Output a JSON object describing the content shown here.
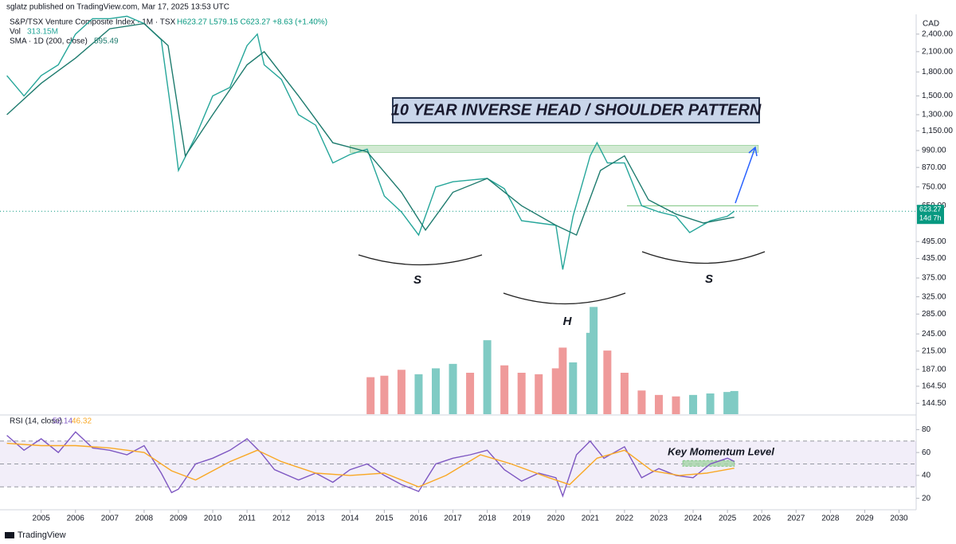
{
  "header": {
    "publisher": "sglatz published on TradingView.com, Mar 17, 2025 13:53 UTC",
    "footer": "TradingView"
  },
  "chart_data": {
    "type": "line",
    "title": "S&P/TSX Venture Composite Index · 1M · TSX",
    "ohlc": "H623.27  L579.15  C623.27  +8.63 (+1.40%)",
    "currency": "CAD",
    "legend": [
      {
        "label": "Vol",
        "value": "313.15M"
      },
      {
        "label": "SMA · 1D (200, close)",
        "value": "595.49"
      }
    ],
    "annotations": {
      "pattern": "10 YEAR INVERSE HEAD / SHOULDER PATTERN",
      "left_shoulder": "S",
      "head": "H",
      "right_shoulder": "S",
      "momentum": "Key Momentum Level",
      "price_tag": "623.27",
      "countdown": "14d 7h"
    },
    "xlim": [
      2003.8,
      2030.5
    ],
    "xticks": [
      2005,
      2006,
      2007,
      2008,
      2009,
      2010,
      2011,
      2012,
      2013,
      2014,
      2015,
      2016,
      2017,
      2018,
      2019,
      2020,
      2021,
      2022,
      2023,
      2024,
      2025,
      2026,
      2027,
      2028,
      2029,
      2030
    ],
    "log_y": true,
    "ylim": [
      133,
      2790
    ],
    "yticks": [
      {
        "value": 2400,
        "label": "2,400.00"
      },
      {
        "value": 2100,
        "label": "2,100.00"
      },
      {
        "value": 1800,
        "label": "1,800.00"
      },
      {
        "value": 1500,
        "label": "1,500.00"
      },
      {
        "value": 1300,
        "label": "1,300.00"
      },
      {
        "value": 1150,
        "label": "1,150.00"
      },
      {
        "value": 990,
        "label": "990.00"
      },
      {
        "value": 870,
        "label": "870.00"
      },
      {
        "value": 750,
        "label": "750.00"
      },
      {
        "value": 650,
        "label": "650.00"
      },
      {
        "value": 495,
        "label": "495.00"
      },
      {
        "value": 435,
        "label": "435.00"
      },
      {
        "value": 375,
        "label": "375.00"
      },
      {
        "value": 325,
        "label": "325.00"
      },
      {
        "value": 285,
        "label": "285.00"
      },
      {
        "value": 245,
        "label": "245.00"
      },
      {
        "value": 215,
        "label": "215.00"
      },
      {
        "value": 187,
        "label": "187.00"
      },
      {
        "value": 164.5,
        "label": "164.50"
      },
      {
        "value": 144.5,
        "label": "144.50"
      }
    ],
    "current_price": 623.27,
    "resistance": [
      975,
      1030
    ],
    "series": [
      {
        "color": "#26a69a",
        "x": [
          2004.0,
          2004.5,
          2005.0,
          2005.5,
          2006.0,
          2006.5,
          2007.0,
          2007.5,
          2008.0,
          2008.5,
          2008.8,
          2009.0,
          2009.5,
          2010.0,
          2010.5,
          2011.0,
          2011.3,
          2011.5,
          2012.0,
          2012.5,
          2013.0,
          2013.5,
          2014.0,
          2014.5,
          2015.0,
          2015.5,
          2016.0,
          2016.5,
          2017.0,
          2017.5,
          2018.0,
          2018.5,
          2019.0,
          2019.5,
          2020.0,
          2020.2,
          2020.5,
          2021.0,
          2021.2,
          2021.5,
          2022.0,
          2022.5,
          2023.0,
          2023.5,
          2023.9,
          2024.5,
          2025.0,
          2025.2
        ],
        "values": [
          1750,
          1500,
          1750,
          1900,
          2400,
          2700,
          2700,
          2750,
          2600,
          2300,
          1300,
          850,
          1100,
          1500,
          1600,
          2200,
          2400,
          1900,
          1700,
          1300,
          1200,
          900,
          960,
          1000,
          700,
          620,
          520,
          750,
          780,
          790,
          800,
          740,
          580,
          570,
          560,
          400,
          600,
          950,
          1050,
          900,
          900,
          650,
          620,
          600,
          530,
          580,
          600,
          623.27
        ]
      },
      {
        "color": "#1e7b6e",
        "x": [
          2004.0,
          2005.0,
          2006.0,
          2007.0,
          2008.0,
          2008.7,
          2009.2,
          2010.0,
          2011.0,
          2011.5,
          2012.5,
          2013.5,
          2014.5,
          2015.5,
          2016.2,
          2017.0,
          2018.0,
          2019.0,
          2020.0,
          2020.6,
          2021.3,
          2022.0,
          2022.7,
          2023.5,
          2024.3,
          2025.2
        ],
        "values": [
          1300,
          1650,
          2000,
          2500,
          2600,
          2200,
          950,
          1300,
          1900,
          2100,
          1500,
          1050,
          980,
          720,
          540,
          720,
          800,
          650,
          560,
          520,
          850,
          950,
          680,
          610,
          570,
          595.49
        ]
      }
    ],
    "volume": {
      "vlim": [
        0,
        1400
      ],
      "x": [
        2014.6,
        2015.0,
        2015.5,
        2016.0,
        2016.5,
        2017.0,
        2017.5,
        2018.0,
        2018.5,
        2019.0,
        2019.5,
        2020.0,
        2020.2,
        2020.5,
        2021.0,
        2021.1,
        2021.5,
        2022.0,
        2022.5,
        2023.0,
        2023.5,
        2024.0,
        2024.5,
        2025.0,
        2025.2
      ],
      "values": [
        500,
        520,
        600,
        540,
        620,
        680,
        560,
        1000,
        660,
        560,
        540,
        620,
        900,
        700,
        1100,
        1450,
        860,
        560,
        320,
        260,
        240,
        260,
        280,
        300,
        313.15
      ],
      "colors": [
        "#ef9a9a",
        "#ef9a9a",
        "#ef9a9a",
        "#80cbc4",
        "#80cbc4",
        "#80cbc4",
        "#ef9a9a",
        "#80cbc4",
        "#ef9a9a",
        "#ef9a9a",
        "#ef9a9a",
        "#ef9a9a",
        "#ef9a9a",
        "#80cbc4",
        "#80cbc4",
        "#80cbc4",
        "#ef9a9a",
        "#ef9a9a",
        "#ef9a9a",
        "#ef9a9a",
        "#ef9a9a",
        "#80cbc4",
        "#80cbc4",
        "#80cbc4",
        "#80cbc4"
      ]
    }
  },
  "rsi": {
    "type": "line",
    "legend_label": "RSI (14, close)",
    "legend_values": [
      "52.14",
      "46.32"
    ],
    "ylim": [
      10,
      90
    ],
    "yticks": [
      80,
      60,
      40,
      20
    ],
    "bands": [
      70,
      50,
      30
    ],
    "momentum_band": [
      48,
      53
    ],
    "series": [
      {
        "color": "#7e57c2",
        "x": [
          2004.0,
          2004.5,
          2005.0,
          2005.5,
          2006.0,
          2006.5,
          2007.0,
          2007.5,
          2008.0,
          2008.5,
          2008.8,
          2009.0,
          2009.5,
          2010.0,
          2010.5,
          2011.0,
          2011.4,
          2011.8,
          2012.5,
          2013.0,
          2013.5,
          2014.0,
          2014.5,
          2015.0,
          2015.5,
          2016.0,
          2016.5,
          2017.0,
          2017.5,
          2018.0,
          2018.5,
          2019.0,
          2019.5,
          2020.0,
          2020.2,
          2020.6,
          2021.0,
          2021.4,
          2022.0,
          2022.5,
          2023.0,
          2023.5,
          2024.0,
          2024.5,
          2025.0,
          2025.2
        ],
        "values": [
          75,
          62,
          72,
          60,
          78,
          64,
          62,
          58,
          66,
          42,
          25,
          28,
          50,
          55,
          62,
          72,
          60,
          45,
          36,
          42,
          34,
          45,
          50,
          40,
          32,
          26,
          50,
          55,
          58,
          62,
          45,
          35,
          42,
          38,
          22,
          58,
          70,
          55,
          65,
          38,
          46,
          40,
          38,
          50,
          55,
          52.14
        ]
      },
      {
        "color": "#f9a825",
        "x": [
          2004.0,
          2005.0,
          2006.0,
          2007.0,
          2008.0,
          2008.8,
          2009.5,
          2010.5,
          2011.3,
          2012.0,
          2013.0,
          2014.0,
          2015.0,
          2016.0,
          2016.8,
          2017.8,
          2018.7,
          2019.8,
          2020.4,
          2021.2,
          2022.0,
          2022.8,
          2023.6,
          2024.4,
          2025.2
        ],
        "values": [
          68,
          66,
          66,
          64,
          60,
          44,
          36,
          52,
          62,
          52,
          42,
          40,
          42,
          30,
          40,
          58,
          50,
          38,
          32,
          55,
          62,
          44,
          40,
          42,
          46.32
        ]
      }
    ]
  }
}
